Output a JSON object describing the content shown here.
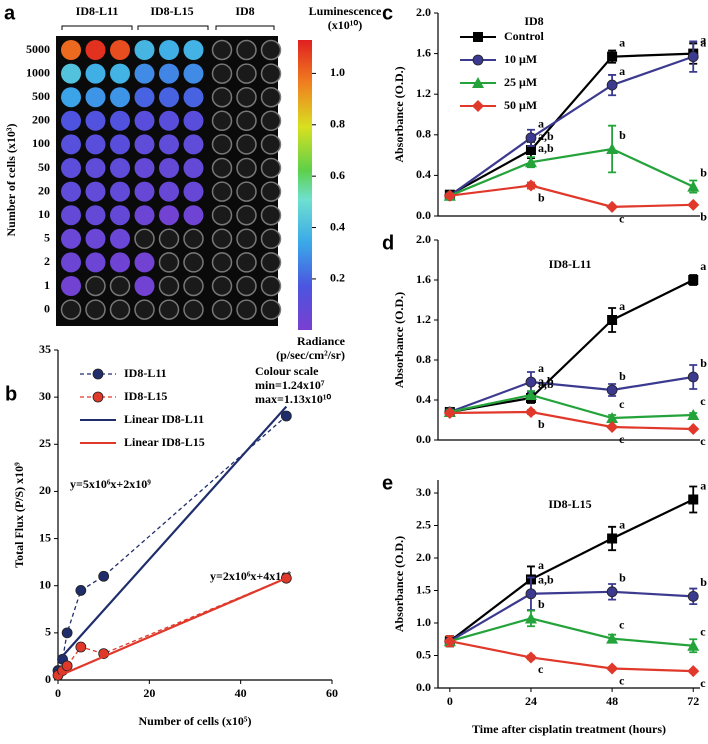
{
  "plate": {
    "panel": "a",
    "groups": [
      "ID8-L11",
      "ID8-L15",
      "ID8"
    ],
    "ylabel": "Number of cells (x10³)",
    "rows": [
      "5000",
      "1000",
      "500",
      "200",
      "100",
      "50",
      "20",
      "10",
      "5",
      "2",
      "1",
      "0"
    ],
    "wells": [
      [
        1.0,
        1.1,
        1.05,
        0.38,
        0.36,
        0.37,
        null,
        null,
        null
      ],
      [
        0.42,
        0.36,
        0.37,
        0.28,
        0.27,
        0.28,
        null,
        null,
        null
      ],
      [
        0.33,
        0.3,
        0.3,
        0.2,
        0.2,
        0.2,
        null,
        null,
        null
      ],
      [
        0.16,
        0.15,
        0.15,
        0.12,
        0.12,
        0.12,
        null,
        null,
        null
      ],
      [
        0.13,
        0.12,
        0.12,
        0.1,
        0.1,
        0.1,
        null,
        null,
        null
      ],
      [
        0.11,
        0.1,
        0.1,
        0.08,
        0.08,
        0.08,
        null,
        null,
        null
      ],
      [
        0.1,
        0.09,
        0.09,
        0.07,
        0.07,
        0.07,
        null,
        null,
        null
      ],
      [
        0.08,
        0.08,
        0.08,
        0.05,
        0.03,
        0.04,
        null,
        null,
        null
      ],
      [
        0.06,
        0.06,
        0.06,
        null,
        null,
        null,
        null,
        null,
        null
      ],
      [
        0.05,
        0.05,
        0.04,
        0.03,
        null,
        null,
        null,
        null,
        null
      ],
      [
        0.03,
        null,
        null,
        0.03,
        null,
        null,
        null,
        null,
        null
      ],
      [
        null,
        null,
        null,
        null,
        null,
        null,
        null,
        null,
        null
      ]
    ],
    "colorbar": {
      "title": "Luminescence",
      "title2": "(x10¹⁰)",
      "clim": [
        0.00124,
        1.13
      ],
      "ticks": [
        0.2,
        0.4,
        0.6,
        0.8,
        {
          "value": 1,
          "label": "1.0"
        }
      ],
      "label": "Radiance",
      "label2": "(p/sec/cm²/sr)"
    },
    "notes": [
      "Colour scale",
      "min=1.24x10⁷",
      "max=1.13x10¹⁰"
    ]
  },
  "chart_data": [
    {
      "type": "line",
      "panel": "b",
      "xlabel": "Number of cells (x10⁵)",
      "ylabel": "Total Flux (P/S)  x10⁹",
      "xlim": [
        0,
        60
      ],
      "xticks": [
        0,
        20,
        40,
        60
      ],
      "ylim": [
        0,
        35
      ],
      "yticks": [
        0,
        5,
        10,
        15,
        20,
        25,
        30,
        35
      ],
      "legend": "upper left",
      "annotations": [
        "y=5x10⁶x+2x10⁹",
        "y=2x10⁶x+4x10⁸"
      ],
      "series": [
        {
          "name": "ID8-L11",
          "color": "#1f2d6b",
          "dash": true,
          "marker": "circle",
          "x": [
            0,
            1,
            2,
            5,
            10,
            50
          ],
          "values": [
            1,
            2.2,
            5,
            9.5,
            11,
            28
          ]
        },
        {
          "name": "ID8-L15",
          "color": "#e0392b",
          "dash": true,
          "marker": "circle",
          "x": [
            0,
            1,
            2,
            5,
            10,
            50
          ],
          "values": [
            0.5,
            1,
            1.5,
            3.5,
            2.8,
            10.8
          ]
        },
        {
          "name": "Linear ID8-L11",
          "color": "#1f2d6b",
          "x": [
            0,
            50
          ],
          "values": [
            2,
            29
          ]
        },
        {
          "name": "Linear ID8-L15",
          "color": "#e0392b",
          "x": [
            0,
            50
          ],
          "values": [
            0.4,
            10.8
          ]
        }
      ]
    },
    {
      "type": "line",
      "panel": "c",
      "title": "ID8",
      "ylabel": "Absorbance (O.D.)",
      "x": [
        0,
        24,
        48,
        72
      ],
      "xlim": [
        -3.5,
        74
      ],
      "ylim": [
        0,
        2
      ],
      "yticks": [
        {
          "value": 0,
          "label": "0.0"
        },
        0.4,
        0.8,
        1.2,
        1.6,
        {
          "value": 2,
          "label": "2.0"
        }
      ],
      "legend": "upper left",
      "series": [
        {
          "name": "Control",
          "color": "#000000",
          "marker": "square",
          "values": [
            0.21,
            0.65,
            1.57,
            1.6
          ],
          "errors": [
            0.02,
            0.08,
            0.06,
            0.1
          ],
          "point_labels": [
            null,
            "a,b",
            "a",
            "a"
          ]
        },
        {
          "name": "10 μM",
          "color": "#3b3a8f",
          "marker": "circle",
          "values": [
            0.2,
            0.77,
            1.29,
            1.57
          ],
          "errors": [
            0.02,
            0.08,
            0.1,
            0.15
          ],
          "point_labels": [
            null,
            "a",
            "a",
            "a"
          ]
        },
        {
          "name": "25 μM",
          "color": "#23a33a",
          "marker": "triangle",
          "values": [
            0.2,
            0.53,
            0.66,
            0.29
          ],
          "errors": [
            0.02,
            0.05,
            0.23,
            0.06
          ],
          "point_labels": [
            null,
            "a,b",
            "b",
            "b"
          ]
        },
        {
          "name": "50 μM",
          "color": "#e0392b",
          "marker": "diamond",
          "values": [
            0.2,
            0.3,
            0.09,
            0.11
          ],
          "errors": [
            0.02,
            0.03,
            0.01,
            0.01
          ],
          "point_labels": [
            null,
            "b",
            "c",
            "b"
          ]
        }
      ]
    },
    {
      "type": "line",
      "panel": "d",
      "title": "ID8-L11",
      "ylabel": "Absorbance (O.D.)",
      "x": [
        0,
        24,
        48,
        72
      ],
      "xlim": [
        -3.5,
        74
      ],
      "ylim": [
        0,
        2
      ],
      "yticks": [
        {
          "value": 0,
          "label": "0.0"
        },
        0.4,
        0.8,
        1.2,
        1.6,
        {
          "value": 2,
          "label": "2.0"
        }
      ],
      "series": [
        {
          "name": "Control",
          "color": "#000000",
          "marker": "square",
          "values": [
            0.28,
            0.42,
            1.2,
            1.6
          ],
          "errors": [
            0.02,
            0.05,
            0.12,
            0.05
          ],
          "point_labels": [
            null,
            "a,b",
            "a",
            "a"
          ]
        },
        {
          "name": "10 μM",
          "color": "#3b3a8f",
          "marker": "circle",
          "values": [
            0.28,
            0.58,
            0.5,
            0.63
          ],
          "errors": [
            0.02,
            0.1,
            0.06,
            0.12
          ],
          "point_labels": [
            null,
            "a",
            "b",
            "b"
          ]
        },
        {
          "name": "25 μM",
          "color": "#23a33a",
          "marker": "triangle",
          "values": [
            0.28,
            0.45,
            0.22,
            0.25
          ],
          "errors": [
            0.02,
            0.04,
            0.03,
            0.02
          ],
          "point_labels": [
            null,
            "a,b",
            "c",
            "c"
          ]
        },
        {
          "name": "50 μM",
          "color": "#e0392b",
          "marker": "diamond",
          "values": [
            0.27,
            0.28,
            0.13,
            0.11
          ],
          "errors": [
            0.02,
            0.02,
            0.01,
            0.01
          ],
          "point_labels": [
            null,
            "b",
            "c",
            "c"
          ]
        }
      ]
    },
    {
      "type": "line",
      "panel": "e",
      "title": "ID8-L15",
      "ylabel": "Absorbance (O.D.)",
      "xlabel": "Time after cisplatin treatment (hours)",
      "x": [
        0,
        24,
        48,
        72
      ],
      "xlim": [
        -3.5,
        74
      ],
      "xticks": [
        0,
        24,
        48,
        72
      ],
      "ylim": [
        0,
        3.2
      ],
      "yticks": [
        {
          "value": 0,
          "label": "0.0"
        },
        0.5,
        {
          "value": 1,
          "label": "1.0"
        },
        1.5,
        {
          "value": 2,
          "label": "2.0"
        },
        2.5,
        {
          "value": 3,
          "label": "3.0"
        }
      ],
      "series": [
        {
          "name": "Control",
          "color": "#000000",
          "marker": "square",
          "values": [
            0.72,
            1.67,
            2.3,
            2.9
          ],
          "errors": [
            0.08,
            0.2,
            0.18,
            0.2
          ],
          "point_labels": [
            null,
            "a",
            "a",
            "a"
          ]
        },
        {
          "name": "10 μM",
          "color": "#3b3a8f",
          "marker": "circle",
          "values": [
            0.72,
            1.45,
            1.48,
            1.41
          ],
          "errors": [
            0.08,
            0.25,
            0.12,
            0.12
          ],
          "point_labels": [
            null,
            "a,b",
            "b",
            "b"
          ]
        },
        {
          "name": "25 μM",
          "color": "#23a33a",
          "marker": "triangle",
          "values": [
            0.72,
            1.07,
            0.76,
            0.65
          ],
          "errors": [
            0.08,
            0.12,
            0.06,
            0.1
          ],
          "point_labels": [
            null,
            "b",
            "c",
            "c"
          ]
        },
        {
          "name": "50 μM",
          "color": "#e0392b",
          "marker": "diamond",
          "values": [
            0.72,
            0.47,
            0.3,
            0.26
          ],
          "errors": [
            0.08,
            0.03,
            0.02,
            0.02
          ],
          "point_labels": [
            null,
            "c",
            "c",
            "c"
          ]
        }
      ]
    }
  ]
}
